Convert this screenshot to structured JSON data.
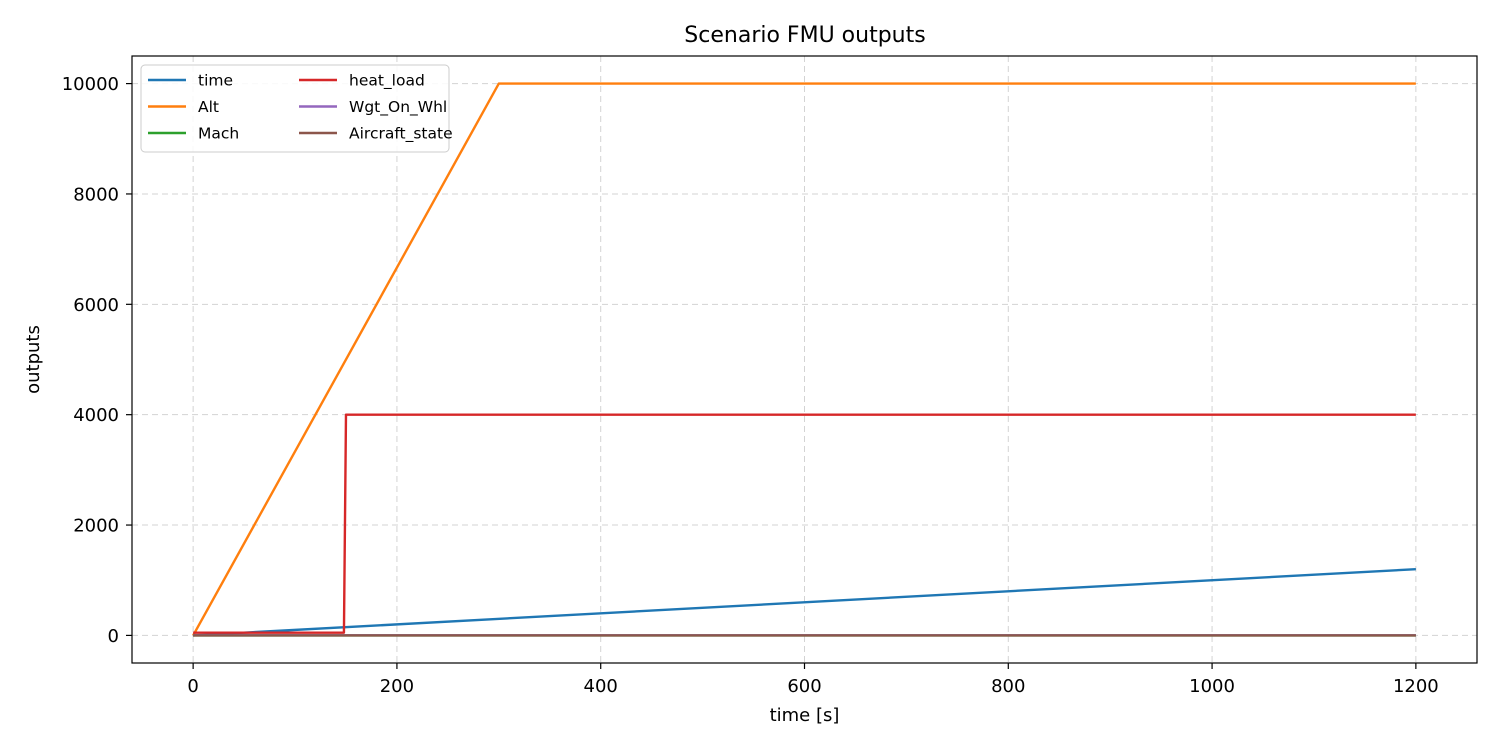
{
  "chart_data": {
    "type": "line",
    "title": "Scenario FMU outputs",
    "xlabel": "time [s]",
    "ylabel": "outputs",
    "xlim": [
      -60,
      1260
    ],
    "ylim": [
      -500,
      10500
    ],
    "xticks": [
      0,
      200,
      400,
      600,
      800,
      1000,
      1200
    ],
    "yticks": [
      0,
      2000,
      4000,
      6000,
      8000,
      10000
    ],
    "grid": true,
    "legend_position": "top-left",
    "legend_columns": 2,
    "series": [
      {
        "name": "time",
        "color": "#1f77b4",
        "x": [
          0,
          1200
        ],
        "y": [
          0,
          1200
        ]
      },
      {
        "name": "Alt",
        "color": "#ff7f0e",
        "x": [
          0,
          300,
          1200
        ],
        "y": [
          0,
          10000,
          10000
        ]
      },
      {
        "name": "Mach",
        "color": "#2ca02c",
        "x": [
          0,
          1200
        ],
        "y": [
          0,
          0
        ]
      },
      {
        "name": "heat_load",
        "color": "#d62728",
        "x": [
          0,
          148,
          150,
          1200
        ],
        "y": [
          50,
          50,
          4000,
          4000
        ]
      },
      {
        "name": "Wgt_On_Whl",
        "color": "#9467bd",
        "x": [
          0,
          1200
        ],
        "y": [
          1,
          1
        ]
      },
      {
        "name": "Aircraft_state",
        "color": "#8c564b",
        "x": [
          0,
          1200
        ],
        "y": [
          0,
          0
        ]
      }
    ]
  }
}
